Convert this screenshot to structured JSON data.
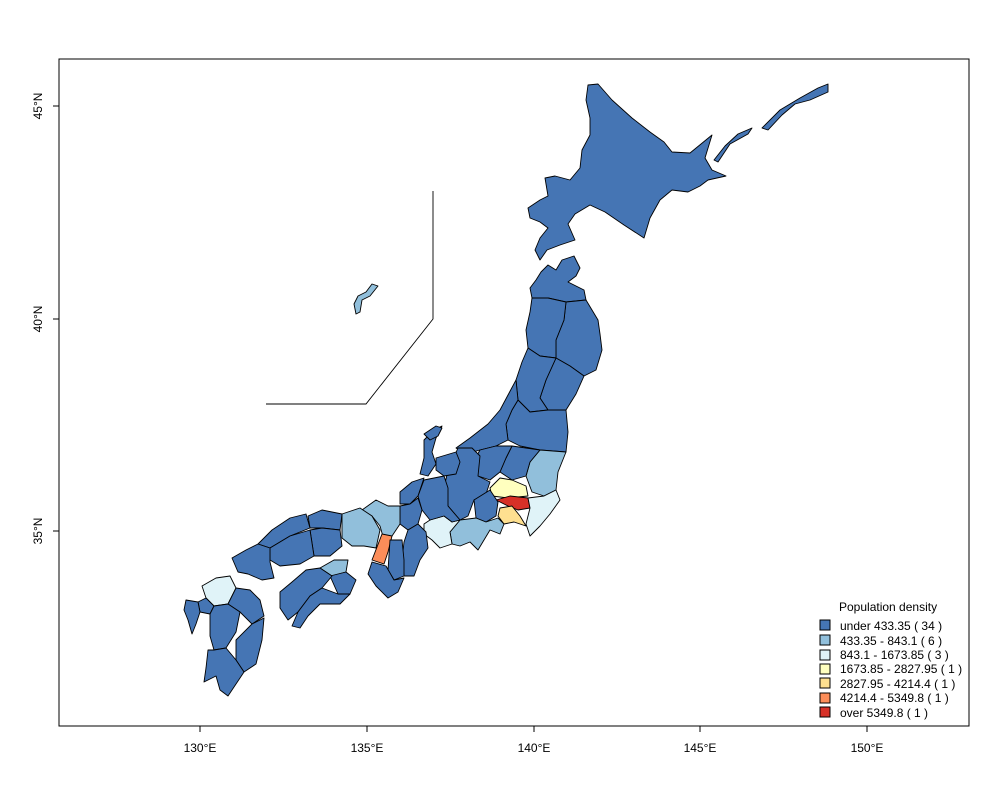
{
  "map": {
    "x_ticks": [
      "130°E",
      "135°E",
      "140°E",
      "145°E",
      "150°E"
    ],
    "y_ticks": [
      "45°N",
      "40°N",
      "35°N"
    ]
  },
  "legend": {
    "title": "Population density",
    "entries": [
      {
        "label": "under 433.35 ( 34 )",
        "color": "#4575b4"
      },
      {
        "label": "433.35 - 843.1 ( 6 )",
        "color": "#91bfdb"
      },
      {
        "label": "843.1 - 1673.85 ( 3 )",
        "color": "#e0f3f8"
      },
      {
        "label": "1673.85 - 2827.95 ( 1 )",
        "color": "#ffffbf"
      },
      {
        "label": "2827.95 - 4214.4 ( 1 )",
        "color": "#fee090"
      },
      {
        "label": "4214.4 - 5349.8 ( 1 )",
        "color": "#fc8d59"
      },
      {
        "label": "over 5349.8 ( 1 )",
        "color": "#d73027"
      }
    ]
  }
}
